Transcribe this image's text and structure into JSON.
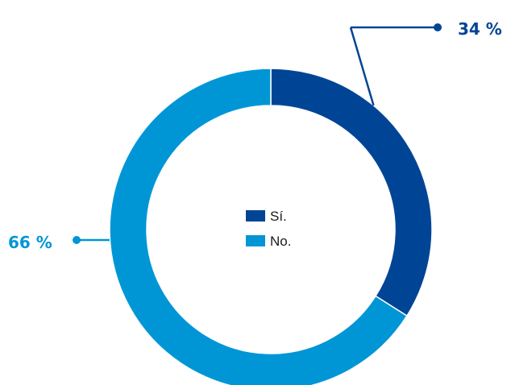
{
  "chart_data": {
    "type": "pie",
    "donut": true,
    "title": "",
    "categories": [
      "Sí.",
      "No."
    ],
    "values": [
      34,
      66
    ],
    "value_labels": [
      "34 %",
      "66 %"
    ],
    "colors": [
      "#004595",
      "#0096D6"
    ],
    "legend": {
      "placement": "center",
      "entries": [
        "Sí.",
        "No."
      ]
    }
  }
}
